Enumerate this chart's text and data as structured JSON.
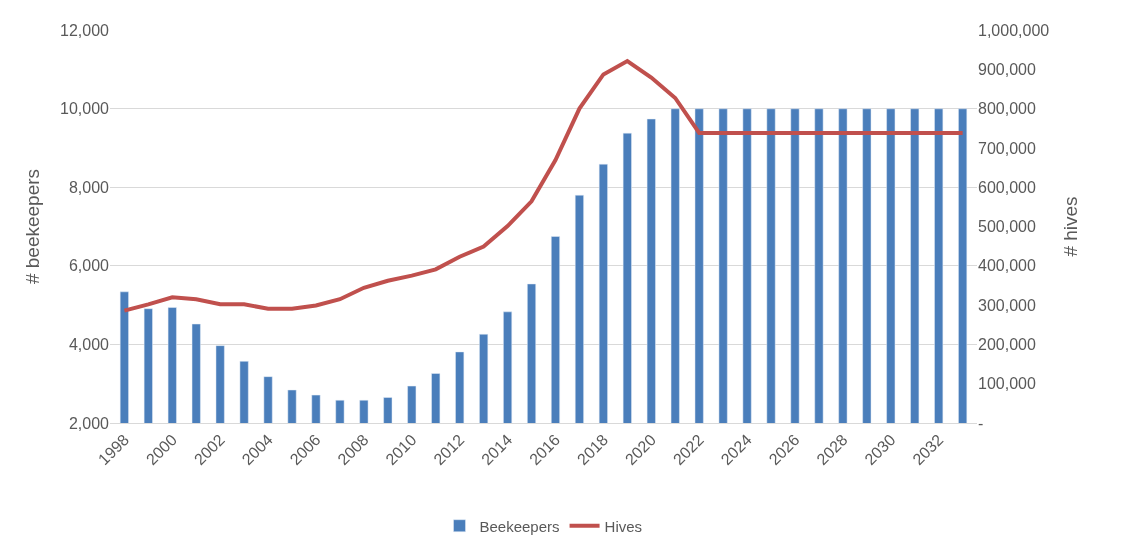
{
  "chart_data": {
    "type": "bar",
    "ylabel": "# beekeepers",
    "y2label": "# hives",
    "categories": [
      "1998",
      null,
      "2000",
      null,
      "2002",
      null,
      "2004",
      null,
      "2006",
      null,
      "2008",
      null,
      "2010",
      null,
      "2012",
      null,
      "2014",
      null,
      "2016",
      null,
      "2018",
      null,
      "2020",
      null,
      "2022",
      null,
      "2024",
      null,
      "2026",
      null,
      "2028",
      null,
      "2030",
      null,
      "2032",
      null
    ],
    "series": [
      {
        "name": "Beekeepers",
        "color": "#4a7ebb",
        "values": [
          5340,
          4910,
          4940,
          4520,
          3970,
          3570,
          3180,
          2840,
          2710,
          2580,
          2580,
          2650,
          2940,
          3260,
          3810,
          4260,
          4830,
          5540,
          6750,
          7800,
          8590,
          9380,
          9740,
          10000,
          10000,
          10000,
          10000,
          10000,
          10000,
          10000,
          10000,
          10000,
          10000,
          10000,
          10000,
          10000
        ]
      },
      {
        "name": "Hives",
        "type": "line",
        "axis": "y2",
        "color": "#c0504d",
        "values": [
          286000,
          302000,
          320000,
          315000,
          302000,
          302000,
          291000,
          291000,
          299000,
          315000,
          344000,
          362000,
          375000,
          391000,
          423000,
          449000,
          501000,
          564000,
          669000,
          800000,
          887000,
          921000,
          879000,
          827000,
          738000,
          738000,
          738000,
          738000,
          738000,
          738000,
          738000,
          738000,
          738000,
          738000,
          738000,
          738000
        ]
      }
    ],
    "ylim": [
      2000,
      12000
    ],
    "yticks": [
      {
        "value": 2000,
        "label": "2,000"
      },
      {
        "value": 4000,
        "label": "4,000"
      },
      {
        "value": 6000,
        "label": "6,000"
      },
      {
        "value": 8000,
        "label": "8,000"
      },
      {
        "value": 10000,
        "label": "10,000"
      },
      {
        "value": 12000,
        "label": "12,000"
      }
    ],
    "y2lim": [
      0,
      1000000
    ],
    "y2ticks": [
      {
        "value": 0,
        "label": "-"
      },
      {
        "value": 100000,
        "label": "100,000"
      },
      {
        "value": 200000,
        "label": "200,000"
      },
      {
        "value": 300000,
        "label": "300,000"
      },
      {
        "value": 400000,
        "label": "400,000"
      },
      {
        "value": 500000,
        "label": "500,000"
      },
      {
        "value": 600000,
        "label": "600,000"
      },
      {
        "value": 700000,
        "label": "700,000"
      },
      {
        "value": 800000,
        "label": "800,000"
      },
      {
        "value": 900000,
        "label": "900,000"
      },
      {
        "value": 1000000,
        "label": "1,000,000"
      }
    ],
    "grid": "y",
    "legend": "bottom",
    "line_style": "solid",
    "marker": "none"
  }
}
